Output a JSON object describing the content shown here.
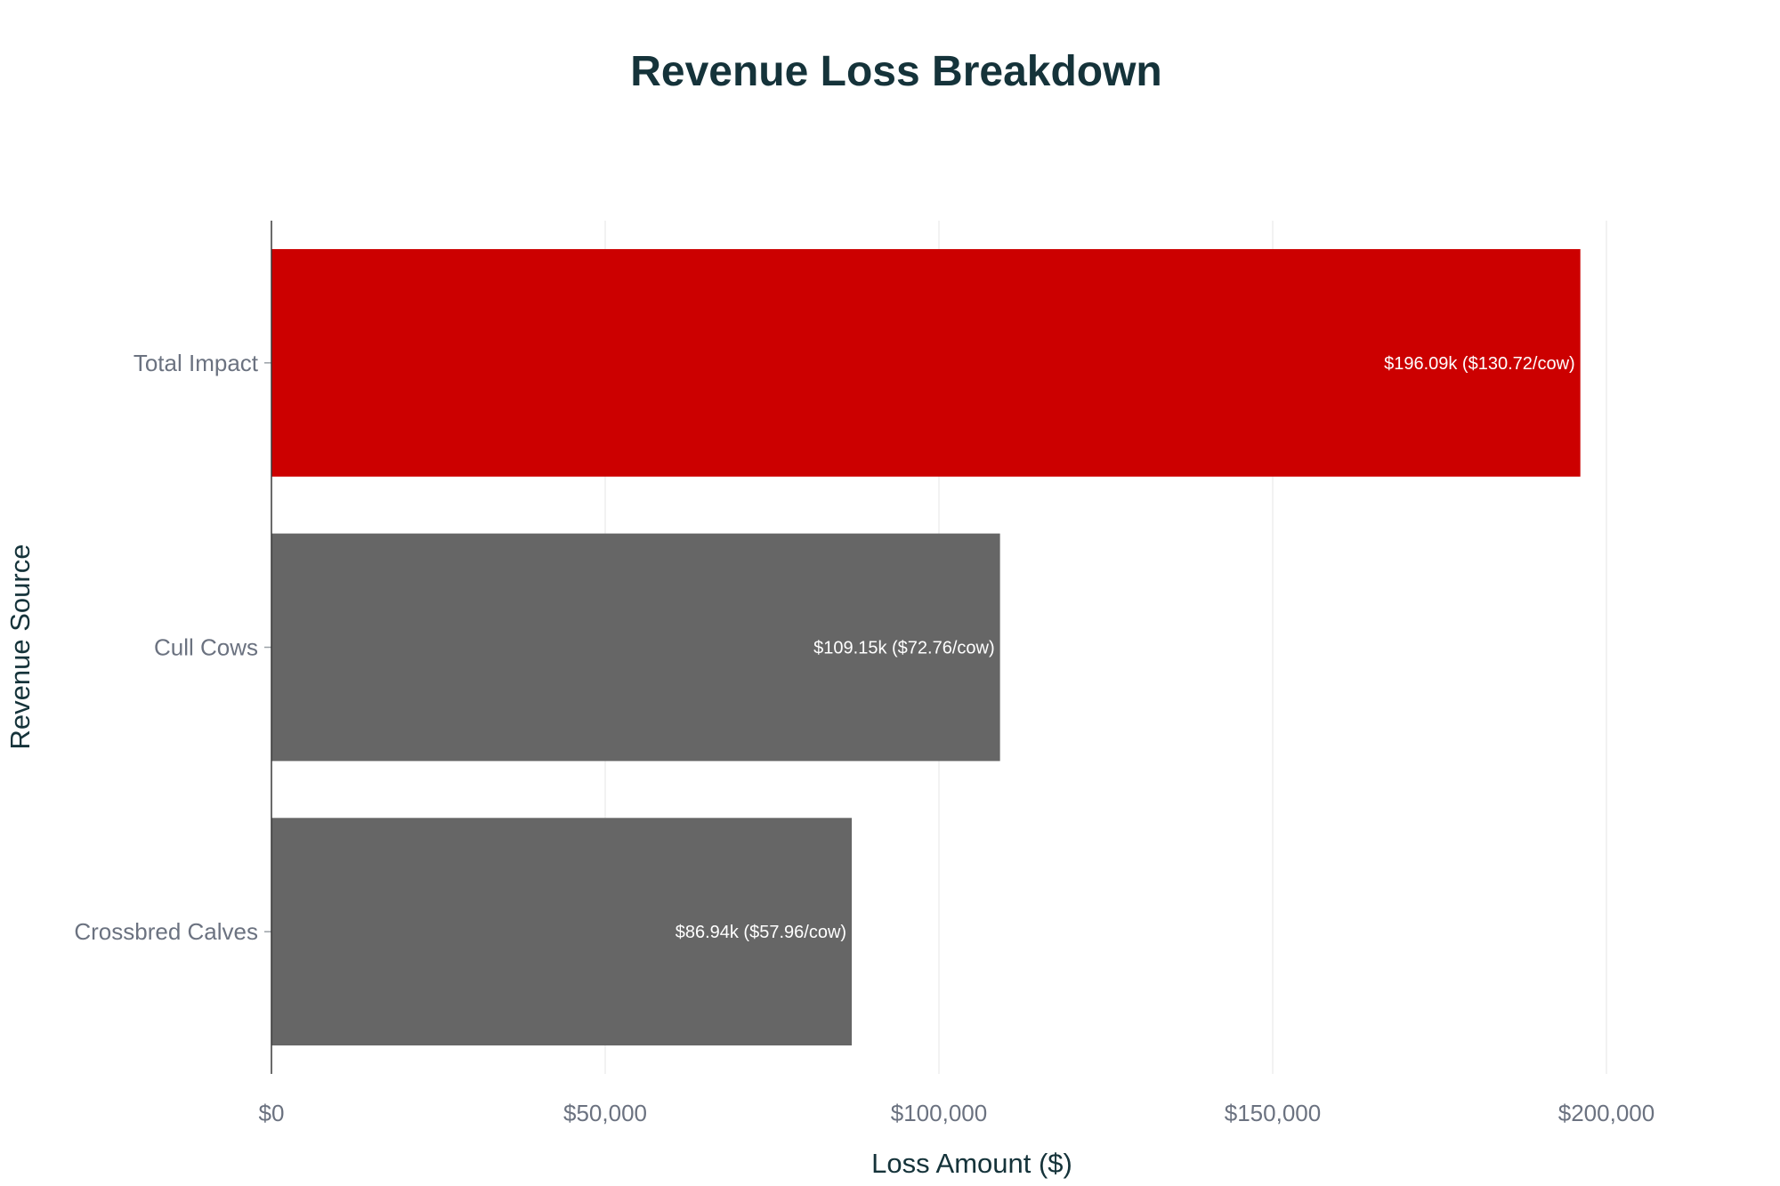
{
  "chart_data": {
    "type": "bar",
    "orientation": "horizontal",
    "title": "Revenue Loss Breakdown",
    "xlabel": "Loss Amount ($)",
    "ylabel": "Revenue Source",
    "xlim": [
      0,
      200000
    ],
    "x_ticks": [
      0,
      50000,
      100000,
      150000,
      200000
    ],
    "x_tick_labels": [
      "$0",
      "$50,000",
      "$100,000",
      "$150,000",
      "$200,000"
    ],
    "grid": true,
    "categories": [
      "Total Impact",
      "Cull Cows",
      "Crossbred Calves"
    ],
    "values": [
      196090,
      109150,
      86940
    ],
    "data_labels": [
      "$196.09k ($130.72/cow)",
      "$109.15k ($72.76/cow)",
      "$86.94k ($57.96/cow)"
    ],
    "colors": [
      "#cc0000",
      "#666666",
      "#666666"
    ]
  }
}
